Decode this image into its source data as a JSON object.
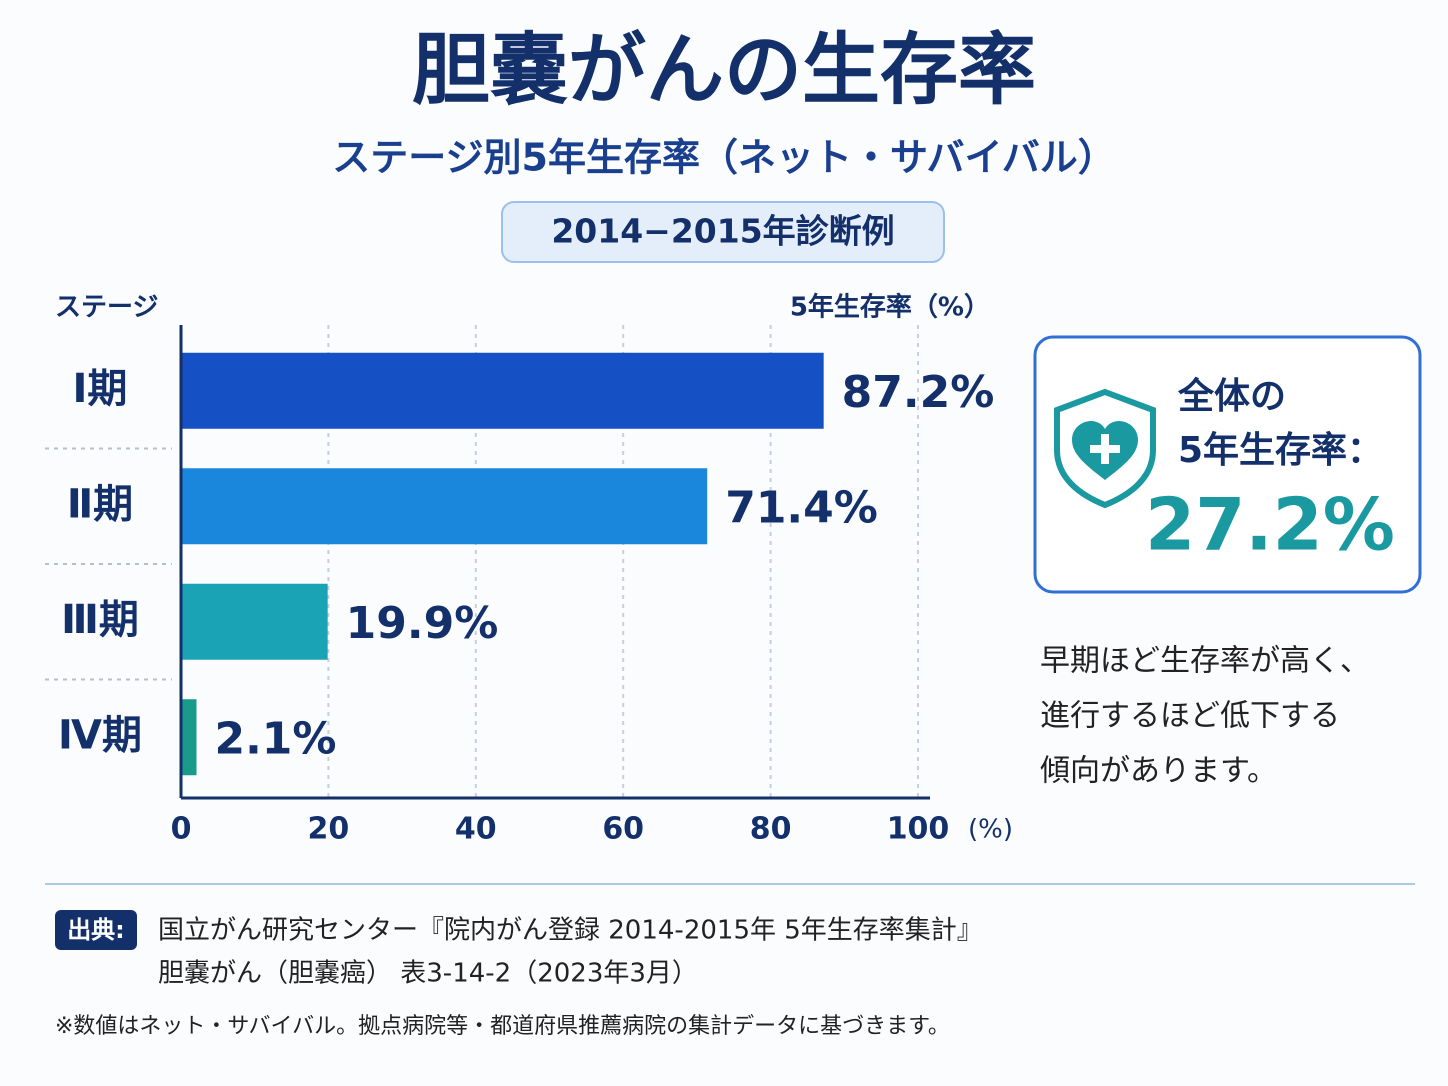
{
  "chart_data": {
    "type": "hbar",
    "title": "胆嚢がんの生存率",
    "subtitle": "ステージ別5年生存率（ネット・サバイバル）",
    "badge": "2014−2015年診断例",
    "y_label": "ステージ",
    "x_label": "5年生存率（%）",
    "x_unit": "(%)",
    "categories": [
      "Ⅰ期",
      "Ⅱ期",
      "Ⅲ期",
      "Ⅳ期"
    ],
    "values": [
      87.2,
      71.4,
      19.9,
      2.1
    ],
    "value_labels": [
      "87.2%",
      "71.4%",
      "19.9%",
      "2.1%"
    ],
    "colors": [
      "#1550c4",
      "#1a86dc",
      "#1aa3b5",
      "#1a9a8a"
    ],
    "xlim": [
      0,
      100
    ],
    "xticks": [
      0,
      20,
      40,
      60,
      80,
      100
    ],
    "grid": true
  },
  "panel": {
    "lines": [
      "全体の",
      "5年生存率："
    ],
    "value": "27.2%"
  },
  "note": [
    "早期ほど生存率が高く、",
    "進行するほど低下する",
    "傾向があります。"
  ],
  "source": {
    "label": "出典:",
    "lines": [
      "国立がん研究センター『院内がん登録 2014-2015年 5年生存率集計』",
      "胆嚢がん（胆嚢癌） 表3-14-2（2023年3月）"
    ]
  },
  "footnote": "※数値はネット・サバイバル。拠点病院等・都道府県推薦病院の集計データに基づきます。"
}
